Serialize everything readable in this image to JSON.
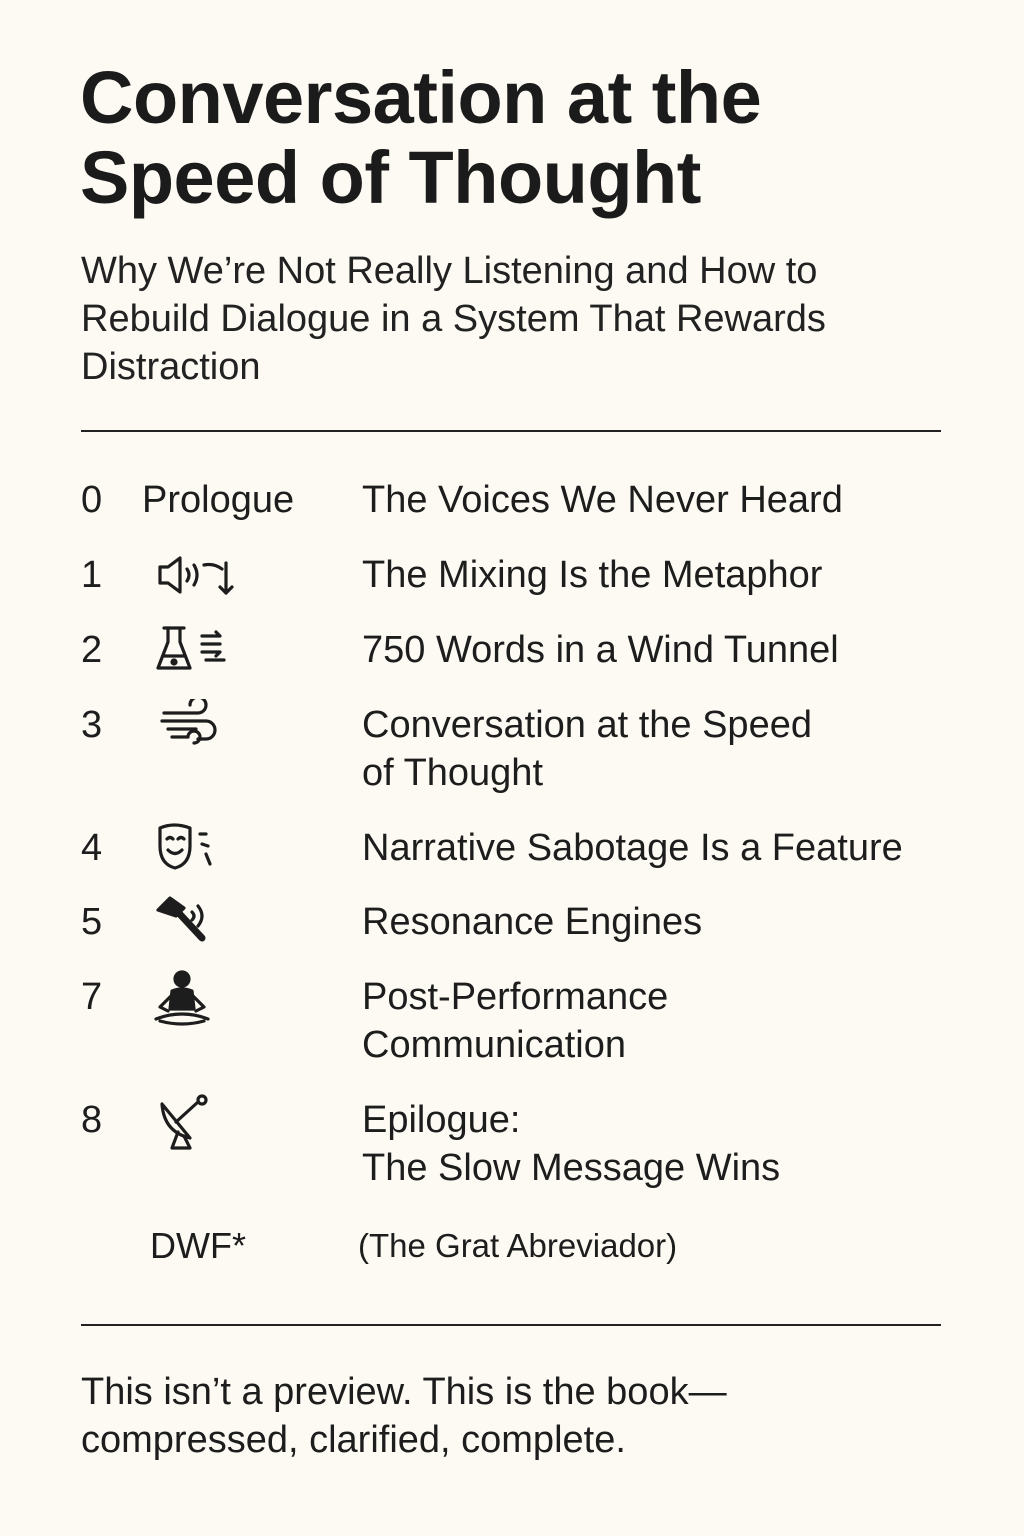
{
  "title": "Conversation at the\nSpeed of Thought",
  "subtitle": "Why We’re Not Really Listening and How to Rebuild Dialogue in a System That Rewards Distraction",
  "toc": [
    {
      "number": "0",
      "label": "Prologue",
      "icon": null,
      "chapter": "The Voices We Never Heard"
    },
    {
      "number": "1",
      "label": "",
      "icon": "speaker-mix-icon",
      "chapter": "The Mixing Is the Metaphor"
    },
    {
      "number": "2",
      "label": "",
      "icon": "flask-icon",
      "chapter": "750 Words in a Wind Tunnel"
    },
    {
      "number": "3",
      "label": "",
      "icon": "wind-icon",
      "chapter": "Conversation at the Speed\nof Thought"
    },
    {
      "number": "4",
      "label": "",
      "icon": "mask-icon",
      "chapter": "Narrative Sabotage Is a Feature"
    },
    {
      "number": "5",
      "label": "",
      "icon": "hammer-icon",
      "chapter": "Resonance Engines"
    },
    {
      "number": "7",
      "label": "",
      "icon": "meditation-icon",
      "chapter": "Post-Performance\nCommunication"
    },
    {
      "number": "8",
      "label": "",
      "icon": "satellite-dish-icon",
      "chapter": "Epilogue:\nThe Slow Message Wins"
    }
  ],
  "dwf": {
    "label": "DWF*",
    "note": "(The Grat Abreviador)"
  },
  "footer": "This isn’t a preview. This is the book—\ncompressed, clarified, complete."
}
